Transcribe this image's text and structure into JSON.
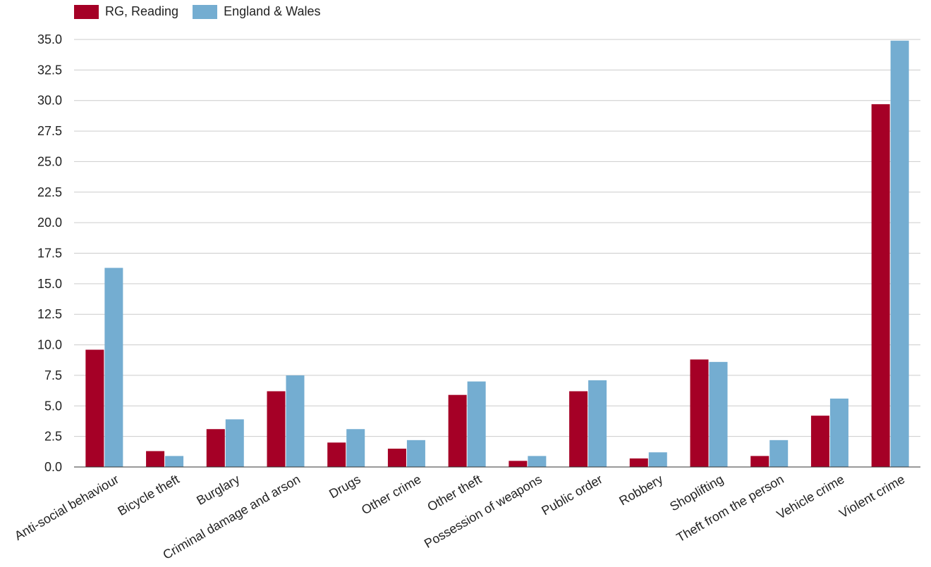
{
  "colors": {
    "series_1": "#a50026",
    "series_2": "#74add1",
    "grid": "#cccccc",
    "axis": "#333333",
    "text": "#222222"
  },
  "legend": {
    "position": "top-left",
    "items": [
      {
        "label": "RG, Reading"
      },
      {
        "label": "England & Wales"
      }
    ]
  },
  "chart_data": {
    "type": "bar",
    "title": "",
    "xlabel": "",
    "ylabel": "",
    "ylim": [
      0,
      35
    ],
    "yticks": [
      "0.0",
      "2.5",
      "5.0",
      "7.5",
      "10.0",
      "12.5",
      "15.0",
      "17.5",
      "20.0",
      "22.5",
      "25.0",
      "27.5",
      "30.0",
      "32.5",
      "35.0"
    ],
    "grid": true,
    "categories": [
      "Anti-social behaviour",
      "Bicycle theft",
      "Burglary",
      "Criminal damage and arson",
      "Drugs",
      "Other crime",
      "Other theft",
      "Possession of weapons",
      "Public order",
      "Robbery",
      "Shoplifting",
      "Theft from the person",
      "Vehicle crime",
      "Violent crime"
    ],
    "series": [
      {
        "name": "RG, Reading",
        "values": [
          9.6,
          1.3,
          3.1,
          6.2,
          2.0,
          1.5,
          5.9,
          0.5,
          6.2,
          0.7,
          8.8,
          0.9,
          4.2,
          29.7
        ]
      },
      {
        "name": "England & Wales",
        "values": [
          16.3,
          0.9,
          3.9,
          7.5,
          3.1,
          2.2,
          7.0,
          0.9,
          7.1,
          1.2,
          8.6,
          2.2,
          5.6,
          34.9
        ]
      }
    ]
  }
}
